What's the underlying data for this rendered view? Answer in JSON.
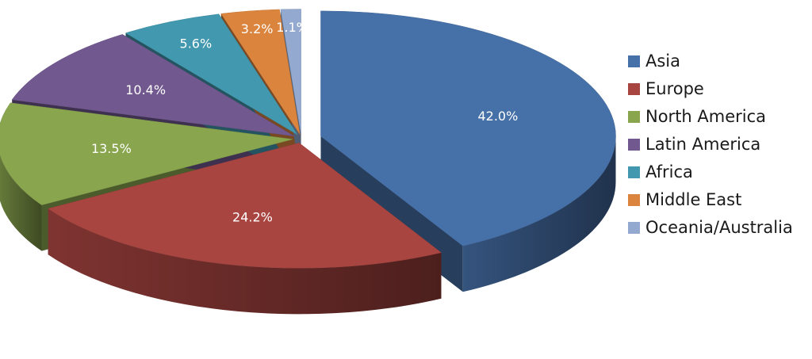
{
  "chart_data": {
    "type": "pie",
    "style": "3d-exploded",
    "title": "",
    "format": "percent",
    "categories": [
      "Asia",
      "Europe",
      "North America",
      "Latin America",
      "Africa",
      "Middle East",
      "Oceania/Australia"
    ],
    "values": [
      42.0,
      24.2,
      13.5,
      10.4,
      5.6,
      3.2,
      1.1
    ],
    "labels": [
      "42.0%",
      "24.2%",
      "13.5%",
      "10.4%",
      "5.6%",
      "3.2%",
      "1.1%"
    ],
    "colors": [
      "#4670a8",
      "#a94541",
      "#89a54e",
      "#71588f",
      "#4198af",
      "#db843d",
      "#93a9cf"
    ],
    "legend": {
      "position": "right"
    }
  }
}
